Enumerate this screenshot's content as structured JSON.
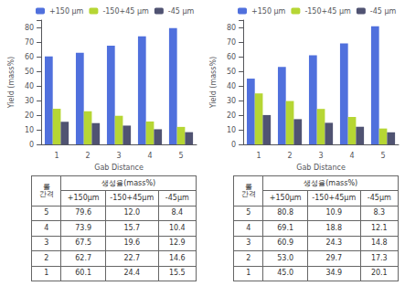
{
  "chart_data": [
    {
      "type": "bar",
      "xlabel": "Gab Distance",
      "ylabel": "Yield (mass%)",
      "categories": [
        "1",
        "2",
        "3",
        "4",
        "5"
      ],
      "series": [
        {
          "name": "+150 μm",
          "values": [
            60.1,
            62.7,
            67.5,
            73.9,
            79.6
          ]
        },
        {
          "name": "-150+45 μm",
          "values": [
            24.4,
            22.7,
            19.6,
            15.7,
            12.0
          ]
        },
        {
          "name": "-45 μm",
          "values": [
            15.5,
            14.6,
            12.9,
            10.4,
            8.4
          ]
        }
      ],
      "ylim": [
        0,
        85
      ],
      "yticks": [
        0,
        10,
        20,
        30,
        40,
        50,
        60,
        70,
        80
      ],
      "grid": false,
      "legend": "upper left",
      "table": {
        "header": "생성율(mass%)",
        "columns": [
          "롤\n간격",
          "+150μm",
          "-150+45μm",
          "-45μm"
        ],
        "rows": [
          [
            "5",
            "79.6",
            "12.0",
            "8.4"
          ],
          [
            "4",
            "73.9",
            "15.7",
            "10.4"
          ],
          [
            "3",
            "67.5",
            "19.6",
            "12.9"
          ],
          [
            "2",
            "62.7",
            "22.7",
            "14.6"
          ],
          [
            "1",
            "60.1",
            "24.4",
            "15.5"
          ]
        ]
      }
    },
    {
      "type": "bar",
      "xlabel": "Gab Distance",
      "ylabel": "Yield (mass%)",
      "categories": [
        "1",
        "2",
        "3",
        "4",
        "5"
      ],
      "series": [
        {
          "name": "+150 μm",
          "values": [
            45.0,
            53.0,
            60.9,
            69.1,
            80.8
          ]
        },
        {
          "name": "-150+45 μm",
          "values": [
            34.9,
            29.7,
            24.3,
            18.8,
            10.9
          ]
        },
        {
          "name": "-45 μm",
          "values": [
            20.1,
            17.3,
            14.8,
            12.1,
            8.3
          ]
        }
      ],
      "ylim": [
        0,
        85
      ],
      "yticks": [
        0,
        10,
        20,
        30,
        40,
        50,
        60,
        70,
        80
      ],
      "grid": false,
      "legend": "upper left",
      "table": {
        "header": "생성율(mass%)",
        "columns": [
          "롤\n간격",
          "+150μm",
          "-150+45μm",
          "-45μm"
        ],
        "rows": [
          [
            "5",
            "80.8",
            "10.9",
            "8.3"
          ],
          [
            "4",
            "69.1",
            "18.8",
            "12.1"
          ],
          [
            "3",
            "60.9",
            "24.3",
            "14.8"
          ],
          [
            "2",
            "53.0",
            "29.7",
            "17.3"
          ],
          [
            "1",
            "45.0",
            "34.9",
            "20.1"
          ]
        ]
      }
    }
  ]
}
